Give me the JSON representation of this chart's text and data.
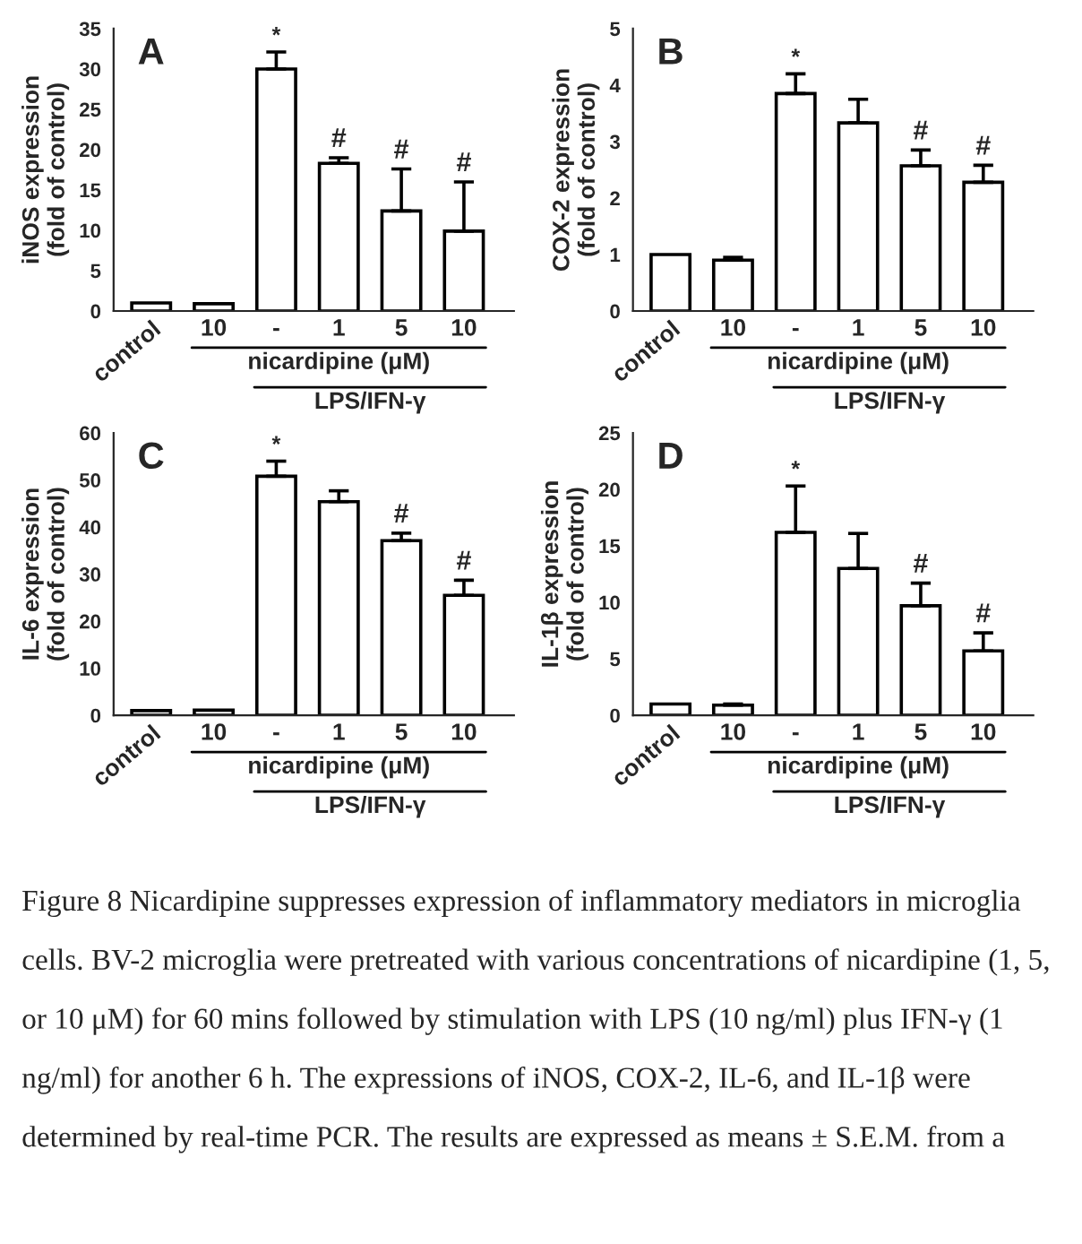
{
  "chart_data": [
    {
      "type": "bar",
      "title": "A",
      "ylabel": "iNOS expression\n(fold of control)",
      "categories": [
        "control",
        "10",
        "-",
        "1",
        "5",
        "10"
      ],
      "values": [
        1.0,
        0.9,
        30.0,
        18.3,
        12.4,
        9.9
      ],
      "errors": [
        null,
        null,
        [
          30.0,
          32.1
        ],
        [
          18.3,
          19.0
        ],
        [
          12.4,
          17.6
        ],
        [
          9.9,
          16.0
        ]
      ],
      "color": "#ffffff",
      "ylim": [
        0,
        35
      ],
      "yticks": [
        0,
        5,
        10,
        15,
        20,
        25,
        30,
        35
      ],
      "grid": false,
      "legend": false,
      "annotations": [
        {
          "text": "*",
          "x": "-",
          "y": 32.1
        },
        {
          "text": "#",
          "x": "1",
          "y": 19.0
        },
        {
          "text": "#",
          "x": "5",
          "y": 17.6
        },
        "#",
        "nicardipine (μM)",
        "LPS/IFN-γ"
      ]
    },
    {
      "type": "bar",
      "title": "B",
      "ylabel": "COX-2 expression\n(fold of control)",
      "categories": [
        "control",
        "10",
        "-",
        "1",
        "5",
        "10"
      ],
      "values": [
        1.0,
        0.9,
        3.85,
        3.33,
        2.57,
        2.28
      ],
      "errors": [
        null,
        [
          0.9,
          0.95
        ],
        [
          3.85,
          4.2
        ],
        [
          3.33,
          3.75
        ],
        [
          2.57,
          2.85
        ],
        [
          2.28,
          2.58
        ]
      ],
      "color": "#ffffff",
      "ylim": [
        0,
        5
      ],
      "yticks": [
        0,
        1,
        2,
        3,
        4,
        5
      ],
      "grid": false,
      "legend": false,
      "annotations": [
        {
          "text": "*",
          "x": "-",
          "y": 4.2
        },
        {
          "text": "#",
          "x": "5",
          "y": 2.85
        },
        "#",
        "nicardipine (μM)",
        "LPS/IFN-γ"
      ]
    },
    {
      "type": "bar",
      "title": "C",
      "ylabel": "IL-6 expression\n(fold of control)",
      "categories": [
        "control",
        "10",
        "-",
        "1",
        "5",
        "10"
      ],
      "values": [
        1.0,
        1.1,
        50.8,
        45.4,
        37.1,
        25.5
      ],
      "errors": [
        null,
        null,
        [
          50.8,
          54.0
        ],
        [
          45.4,
          47.7
        ],
        [
          37.1,
          38.7
        ],
        [
          25.5,
          28.7
        ]
      ],
      "color": "#ffffff",
      "ylim": [
        0,
        60
      ],
      "yticks": [
        0,
        10,
        20,
        30,
        40,
        50,
        60
      ],
      "grid": false,
      "legend": false,
      "annotations": [
        {
          "text": "*",
          "x": "-",
          "y": 54.0
        },
        {
          "text": "#",
          "x": "5",
          "y": 38.7
        },
        "#",
        "nicardipine (μM)",
        "LPS/IFN-γ"
      ]
    },
    {
      "type": "bar",
      "title": "D",
      "ylabel": "IL-1β expression\n(fold of control)",
      "categories": [
        "control",
        "10",
        "-",
        "1",
        "5",
        "10"
      ],
      "values": [
        1.0,
        0.9,
        16.2,
        13.0,
        9.7,
        5.7
      ],
      "errors": [
        null,
        [
          0.9,
          1.0
        ],
        [
          16.2,
          20.3
        ],
        [
          13.0,
          16.1
        ],
        [
          9.7,
          11.7
        ],
        [
          5.7,
          7.3
        ]
      ],
      "color": "#ffffff",
      "ylim": [
        0,
        25
      ],
      "yticks": [
        0,
        5,
        10,
        15,
        20,
        25
      ],
      "grid": false,
      "legend": false,
      "annotations": [
        {
          "text": "*",
          "x": "-",
          "y": 20.3
        },
        {
          "text": "#",
          "x": "5",
          "y": 11.7
        },
        "#",
        "nicardipine (μM)",
        "LPS/IFN-γ",
        "Figure 8 Nicardipine suppresses expression of inflammatory mediators in microglia cells. BV-2 microglia were pretreated with various concentrations of nicardipine (1, 5, or 10 μM) for 60 mins followed by stimulation with LPS (10 ng/ml) plus IFN-γ (1 ng/ml) for another 6 h. The expressions of iNOS, COX-2, IL-6, and IL-1β were determined by real-time PCR. The results are expressed as means ± S.E.M. from a"
      ]
    }
  ]
}
